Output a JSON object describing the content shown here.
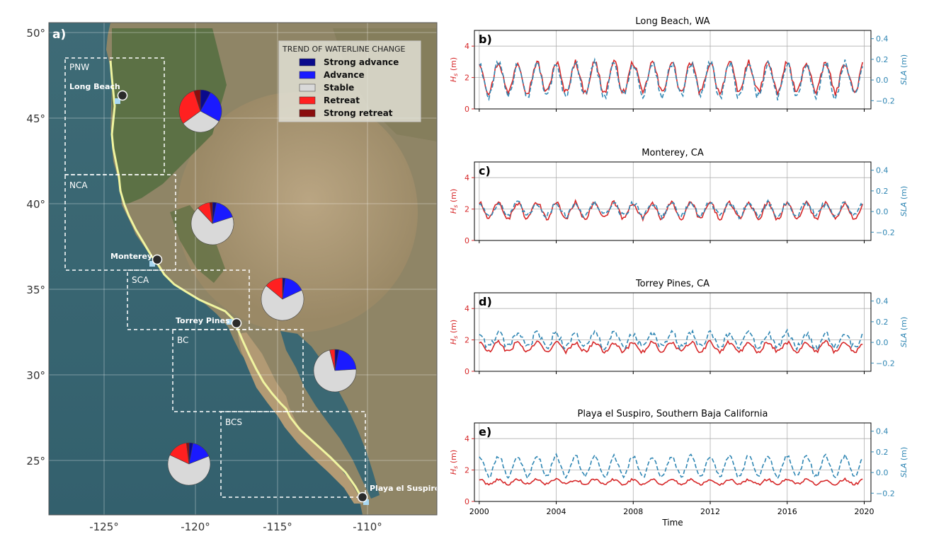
{
  "colors": {
    "hs": "#d62728",
    "sla": "#2f86b3",
    "strong_advance": "#0a0a8c",
    "advance": "#1a1aff",
    "stable": "#d9d9d9",
    "retreat": "#ff2020",
    "strong_retreat": "#8b0e0e",
    "coastline": "#f0f5a0"
  },
  "map": {
    "panel_label": "a)",
    "lat_ticks": [
      "50°",
      "45°",
      "40°",
      "35°",
      "30°",
      "25°"
    ],
    "lon_ticks": [
      "-125°",
      "-120°",
      "-115°",
      "-110°"
    ],
    "legend": {
      "title": "TREND OF WATERLINE CHANGE",
      "entries": [
        "Strong advance",
        "Advance",
        "Stable",
        "Retreat",
        "Strong retreat"
      ]
    },
    "regions": [
      "PNW",
      "NCA",
      "SCA",
      "BC",
      "BCS"
    ],
    "sites": [
      "Long Beach",
      "Monterey",
      "Torrey Pines",
      "Playa el Suspiro"
    ]
  },
  "chart_data": [
    {
      "type": "pie",
      "region": "PNW",
      "categories": [
        "Strong advance",
        "Advance",
        "Stable",
        "Retreat",
        "Strong retreat"
      ],
      "values": [
        8,
        25,
        32,
        30,
        5
      ]
    },
    {
      "type": "pie",
      "region": "NCA",
      "categories": [
        "Strong advance",
        "Advance",
        "Stable",
        "Retreat",
        "Strong retreat"
      ],
      "values": [
        3,
        17,
        68,
        10,
        2
      ]
    },
    {
      "type": "pie",
      "region": "SCA",
      "categories": [
        "Strong advance",
        "Advance",
        "Stable",
        "Retreat",
        "Strong retreat"
      ],
      "values": [
        2,
        16,
        68,
        14,
        0
      ]
    },
    {
      "type": "pie",
      "region": "BC",
      "categories": [
        "Strong advance",
        "Advance",
        "Stable",
        "Retreat",
        "Strong retreat"
      ],
      "values": [
        3,
        21,
        72,
        4,
        0
      ]
    },
    {
      "type": "pie",
      "region": "BCS",
      "categories": [
        "Strong advance",
        "Advance",
        "Stable",
        "Retreat",
        "Strong retreat"
      ],
      "values": [
        3,
        16,
        63,
        16,
        2
      ]
    },
    {
      "type": "line",
      "panel": "b)",
      "title": "Long Beach, WA",
      "ylabel_left": "Hs (m)",
      "ylabel_right": "SLA (m)",
      "ylim_left": [
        0,
        5
      ],
      "ylim_right": [
        -0.28,
        0.48
      ],
      "yticks_left": [
        0,
        2,
        4
      ],
      "yticks_right": [
        -0.2,
        0.0,
        0.2,
        0.4
      ],
      "xlim": [
        1999.75,
        2020.35
      ],
      "xticks": [
        2000,
        2004,
        2008,
        2012,
        2016,
        2020
      ],
      "series": [
        {
          "name": "Hs",
          "axis": "left",
          "style": "solid",
          "mean": 2.0,
          "amplitude": 0.95,
          "noise": 0.22
        },
        {
          "name": "SLA",
          "axis": "right",
          "style": "dashed",
          "mean": 0.0,
          "amplitude": 0.16,
          "noise": 0.04
        }
      ]
    },
    {
      "type": "line",
      "panel": "c)",
      "title": "Monterey, CA",
      "ylabel_left": "Hs (m)",
      "ylabel_right": "SLA (m)",
      "ylim_left": [
        0,
        5
      ],
      "ylim_right": [
        -0.28,
        0.48
      ],
      "yticks_left": [
        0,
        2,
        4
      ],
      "yticks_right": [
        -0.2,
        0.0,
        0.2,
        0.4
      ],
      "xlim": [
        1999.75,
        2020.35
      ],
      "xticks": [
        2000,
        2004,
        2008,
        2012,
        2016,
        2020
      ],
      "series": [
        {
          "name": "Hs",
          "axis": "left",
          "style": "solid",
          "mean": 1.9,
          "amplitude": 0.5,
          "noise": 0.15
        },
        {
          "name": "SLA",
          "axis": "right",
          "style": "dashed",
          "mean": 0.02,
          "amplitude": 0.06,
          "noise": 0.03
        }
      ]
    },
    {
      "type": "line",
      "panel": "d)",
      "title": "Torrey Pines, CA",
      "ylabel_left": "Hs (m)",
      "ylabel_right": "SLA (m)",
      "ylim_left": [
        0,
        5
      ],
      "ylim_right": [
        -0.28,
        0.48
      ],
      "yticks_left": [
        0,
        2,
        4
      ],
      "yticks_right": [
        -0.2,
        0.0,
        0.2,
        0.4
      ],
      "xlim": [
        1999.75,
        2020.35
      ],
      "xticks": [
        2000,
        2004,
        2008,
        2012,
        2016,
        2020
      ],
      "series": [
        {
          "name": "Hs",
          "axis": "left",
          "style": "solid",
          "mean": 1.55,
          "amplitude": 0.3,
          "noise": 0.12
        },
        {
          "name": "SLA",
          "axis": "right",
          "style": "dashed",
          "mean": 0.02,
          "amplitude": 0.07,
          "noise": 0.035
        }
      ]
    },
    {
      "type": "line",
      "panel": "e)",
      "title": "Playa el Suspiro, Southern Baja California",
      "ylabel_left": "Hs (m)",
      "ylabel_right": "SLA (m)",
      "xlabel": "Time",
      "ylim_left": [
        0,
        5
      ],
      "ylim_right": [
        -0.28,
        0.48
      ],
      "yticks_left": [
        0,
        2,
        4
      ],
      "yticks_right": [
        -0.2,
        0.0,
        0.2,
        0.4
      ],
      "xlim": [
        1999.75,
        2020.35
      ],
      "xticks": [
        2000,
        2004,
        2008,
        2012,
        2016,
        2020
      ],
      "series": [
        {
          "name": "Hs",
          "axis": "left",
          "style": "solid",
          "mean": 1.25,
          "amplitude": 0.15,
          "noise": 0.08
        },
        {
          "name": "SLA",
          "axis": "right",
          "style": "dashed",
          "mean": 0.06,
          "amplitude": 0.1,
          "noise": 0.02
        }
      ]
    }
  ]
}
